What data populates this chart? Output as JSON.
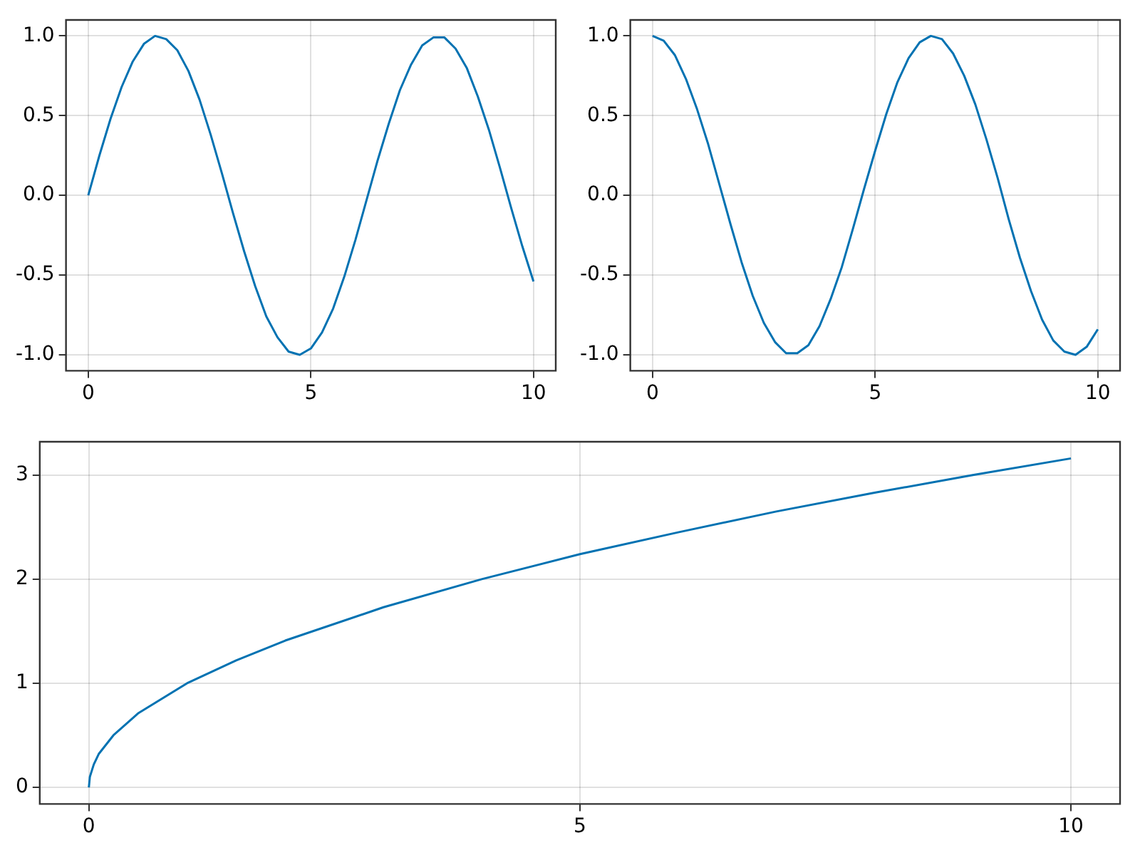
{
  "chart_data": [
    {
      "type": "line",
      "x": [
        0,
        0.25,
        0.5,
        0.75,
        1,
        1.25,
        1.5,
        1.75,
        2,
        2.25,
        2.5,
        2.75,
        3,
        3.25,
        3.5,
        3.75,
        4,
        4.25,
        4.5,
        4.75,
        5,
        5.25,
        5.5,
        5.75,
        6,
        6.25,
        6.5,
        6.75,
        7,
        7.25,
        7.5,
        7.75,
        8,
        8.25,
        8.5,
        8.75,
        9,
        9.25,
        9.5,
        9.75,
        10
      ],
      "series": [
        {
          "color": "#0072b2",
          "values": [
            0,
            0.25,
            0.48,
            0.68,
            0.84,
            0.95,
            1.0,
            0.98,
            0.91,
            0.78,
            0.6,
            0.38,
            0.14,
            -0.11,
            -0.35,
            -0.57,
            -0.76,
            -0.89,
            -0.98,
            -1.0,
            -0.96,
            -0.86,
            -0.71,
            -0.51,
            -0.28,
            -0.03,
            0.22,
            0.45,
            0.66,
            0.82,
            0.94,
            0.99,
            0.99,
            0.92,
            0.8,
            0.62,
            0.41,
            0.17,
            -0.08,
            -0.32,
            -0.54
          ]
        }
      ],
      "xlim": [
        -0.5,
        10.5
      ],
      "xticks": [
        0,
        5,
        10
      ],
      "ylim": [
        -1.1,
        1.1
      ],
      "yticks": [
        {
          "value": -1,
          "label": "-1.0"
        },
        {
          "value": -0.5,
          "label": "-0.5"
        },
        {
          "value": 0,
          "label": "0.0"
        },
        {
          "value": 0.5,
          "label": "0.5"
        },
        {
          "value": 1,
          "label": "1.0"
        }
      ],
      "grid": true,
      "legend": false
    },
    {
      "type": "line",
      "x": [
        0,
        0.25,
        0.5,
        0.75,
        1,
        1.25,
        1.5,
        1.75,
        2,
        2.25,
        2.5,
        2.75,
        3,
        3.25,
        3.5,
        3.75,
        4,
        4.25,
        4.5,
        4.75,
        5,
        5.25,
        5.5,
        5.75,
        6,
        6.25,
        6.5,
        6.75,
        7,
        7.25,
        7.5,
        7.75,
        8,
        8.25,
        8.5,
        8.75,
        9,
        9.25,
        9.5,
        9.75,
        10
      ],
      "series": [
        {
          "color": "#0072b2",
          "values": [
            1,
            0.97,
            0.88,
            0.73,
            0.54,
            0.32,
            0.07,
            -0.18,
            -0.42,
            -0.63,
            -0.8,
            -0.92,
            -0.99,
            -0.99,
            -0.94,
            -0.82,
            -0.65,
            -0.45,
            -0.21,
            0.04,
            0.28,
            0.51,
            0.71,
            0.86,
            0.96,
            1.0,
            0.98,
            0.89,
            0.75,
            0.57,
            0.35,
            0.11,
            -0.15,
            -0.39,
            -0.6,
            -0.78,
            -0.91,
            -0.98,
            -1.0,
            -0.95,
            -0.84
          ]
        }
      ],
      "xlim": [
        -0.5,
        10.5
      ],
      "xticks": [
        0,
        5,
        10
      ],
      "ylim": [
        -1.1,
        1.1
      ],
      "yticks": [
        {
          "value": -1,
          "label": "-1.0"
        },
        {
          "value": -0.5,
          "label": "-0.5"
        },
        {
          "value": 0,
          "label": "0.0"
        },
        {
          "value": 0.5,
          "label": "0.5"
        },
        {
          "value": 1,
          "label": "1.0"
        }
      ],
      "grid": true,
      "legend": false
    },
    {
      "type": "line",
      "x": [
        0,
        0.01,
        0.05,
        0.1,
        0.25,
        0.5,
        1,
        1.5,
        2,
        3,
        4,
        5,
        6,
        7,
        8,
        9,
        10
      ],
      "series": [
        {
          "color": "#0072b2",
          "values": [
            0,
            0.1,
            0.22,
            0.32,
            0.5,
            0.71,
            1,
            1.22,
            1.41,
            1.73,
            2,
            2.24,
            2.45,
            2.65,
            2.83,
            3,
            3.16
          ]
        }
      ],
      "xlim": [
        -0.5,
        10.5
      ],
      "xticks": [
        0,
        5,
        10
      ],
      "ylim": [
        -0.16,
        3.32
      ],
      "yticks": [
        0,
        1,
        2,
        3
      ],
      "grid": true,
      "legend": false
    }
  ]
}
